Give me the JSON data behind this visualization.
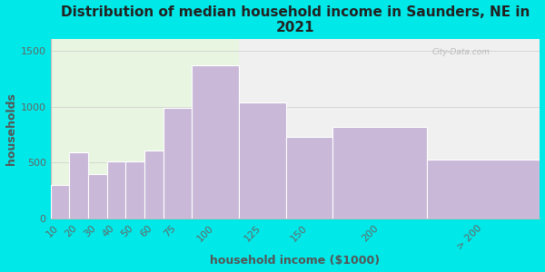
{
  "title": "Distribution of median household income in Saunders, NE in\n2021",
  "xlabel": "household income ($1000)",
  "ylabel": "households",
  "bar_labels": [
    "10",
    "20",
    "30",
    "40",
    "50",
    "60",
    "75",
    "100",
    "125",
    "150",
    "200",
    "> 200"
  ],
  "bar_values": [
    300,
    590,
    400,
    510,
    510,
    610,
    990,
    1370,
    1040,
    730,
    820,
    530
  ],
  "bar_left_edges": [
    0,
    10,
    20,
    30,
    40,
    50,
    60,
    75,
    100,
    125,
    150,
    200
  ],
  "bar_widths": [
    10,
    10,
    10,
    10,
    10,
    10,
    15,
    25,
    25,
    25,
    50,
    60
  ],
  "bar_color": "#c9b8d8",
  "bar_edge_color": "#ffffff",
  "ylim": [
    0,
    1600
  ],
  "yticks": [
    0,
    500,
    1000,
    1500
  ],
  "bg_color": "#00e8e8",
  "plot_bg_left": "#e8f5e0",
  "plot_bg_right": "#f0f0f0",
  "split_at": 100,
  "title_fontsize": 11,
  "axis_label_fontsize": 9,
  "tick_fontsize": 8,
  "watermark": "City-Data.com"
}
